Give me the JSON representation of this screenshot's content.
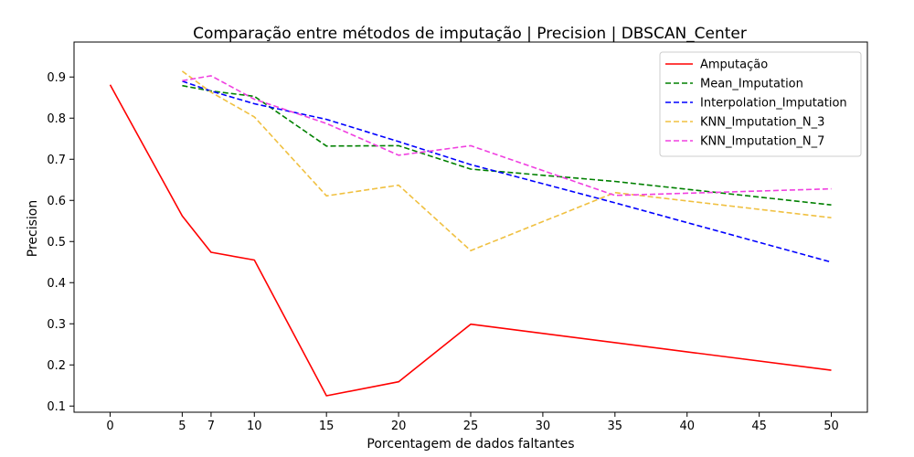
{
  "chart_data": {
    "type": "line",
    "title": "Comparação entre métodos de imputação | Precision | DBSCAN_Center",
    "xlabel": "Porcentagem de dados faltantes",
    "ylabel": "Precision",
    "xlim": [
      -2.5,
      52.5
    ],
    "ylim": [
      0.085,
      0.985
    ],
    "xticks": [
      0,
      5,
      7,
      10,
      15,
      20,
      25,
      30,
      35,
      40,
      45,
      50
    ],
    "yticks": [
      0.1,
      0.2,
      0.3,
      0.4,
      0.5,
      0.6,
      0.7,
      0.8,
      0.9
    ],
    "grid": false,
    "legend_position": "top-right",
    "series": [
      {
        "name": "Amputação",
        "color": "#ff0000",
        "dash": "solid",
        "x": [
          0,
          5,
          7,
          10,
          15,
          20,
          25,
          50
        ],
        "y": [
          0.881,
          0.562,
          0.474,
          0.455,
          0.125,
          0.159,
          0.299,
          0.187
        ]
      },
      {
        "name": "Mean_Imputation",
        "color": "#008000",
        "dash": "dashed",
        "x": [
          5,
          7,
          10,
          15,
          20,
          25,
          35,
          50
        ],
        "y": [
          0.879,
          0.866,
          0.853,
          0.732,
          0.733,
          0.676,
          0.646,
          0.589
        ]
      },
      {
        "name": "Interpolation_Imputation",
        "color": "#0000ff",
        "dash": "dashed",
        "x": [
          5,
          7,
          10,
          15,
          20,
          25,
          35,
          50
        ],
        "y": [
          0.89,
          0.866,
          0.835,
          0.797,
          0.743,
          0.687,
          0.594,
          0.45
        ]
      },
      {
        "name": "KNN_Imputation_N_3",
        "color": "#f0c040",
        "dash": "dashed",
        "x": [
          5,
          7,
          10,
          15,
          20,
          25,
          35,
          50
        ],
        "y": [
          0.914,
          0.863,
          0.803,
          0.611,
          0.637,
          0.478,
          0.619,
          0.558
        ]
      },
      {
        "name": "KNN_Imputation_N_7",
        "color": "#f040e0",
        "dash": "dashed",
        "x": [
          5,
          7,
          10,
          15,
          20,
          25,
          35,
          50
        ],
        "y": [
          0.891,
          0.903,
          0.846,
          0.787,
          0.71,
          0.733,
          0.612,
          0.628
        ]
      }
    ]
  }
}
